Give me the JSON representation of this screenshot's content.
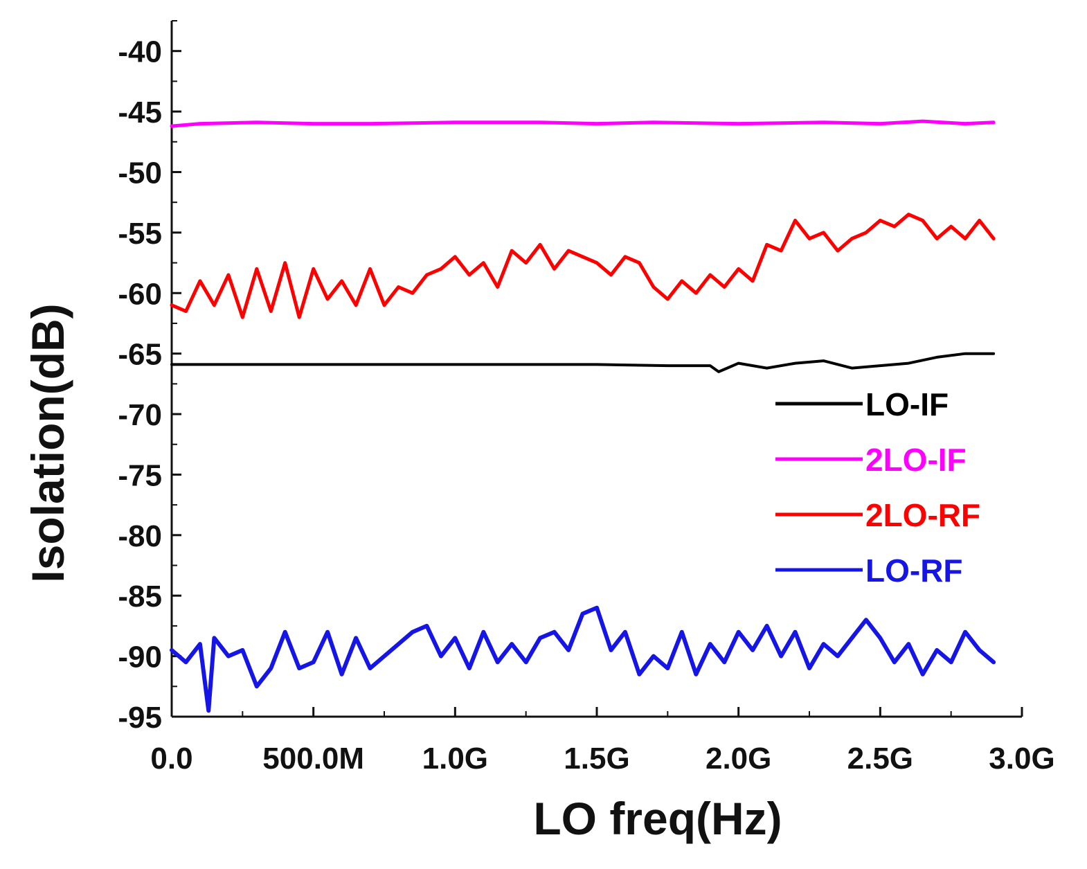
{
  "chart_data": {
    "type": "line",
    "title": "",
    "xlabel": "LO freq(Hz)",
    "ylabel": "Isolation(dB)",
    "xlim": [
      0,
      3000000000
    ],
    "ylim": [
      -95,
      -37.5
    ],
    "x_ticks": [
      {
        "value": 0,
        "label": "0.0"
      },
      {
        "value": 500000000,
        "label": "500.0M"
      },
      {
        "value": 1000000000,
        "label": "1.0G"
      },
      {
        "value": 1500000000,
        "label": "1.5G"
      },
      {
        "value": 2000000000,
        "label": "2.0G"
      },
      {
        "value": 2500000000,
        "label": "2.5G"
      },
      {
        "value": 3000000000,
        "label": "3.0G"
      }
    ],
    "y_ticks": [
      {
        "value": -40,
        "label": "-40"
      },
      {
        "value": -45,
        "label": "-45"
      },
      {
        "value": -50,
        "label": "-50"
      },
      {
        "value": -55,
        "label": "-55"
      },
      {
        "value": -60,
        "label": "-60"
      },
      {
        "value": -65,
        "label": "-65"
      },
      {
        "value": -70,
        "label": "-70"
      },
      {
        "value": -75,
        "label": "-75"
      },
      {
        "value": -80,
        "label": "-80"
      },
      {
        "value": -85,
        "label": "-85"
      },
      {
        "value": -90,
        "label": "-90"
      },
      {
        "value": -95,
        "label": "-95"
      }
    ],
    "legend_position": "middle-right",
    "x_unit": "GHz",
    "series": [
      {
        "name": "LO-IF",
        "color": "#000000",
        "x": [
          0.0,
          0.5,
          1.0,
          1.5,
          1.75,
          1.9,
          1.93,
          1.97,
          2.0,
          2.1,
          2.2,
          2.3,
          2.4,
          2.5,
          2.6,
          2.7,
          2.8,
          2.9
        ],
        "y": [
          -65.9,
          -65.9,
          -65.9,
          -65.9,
          -66.0,
          -66.0,
          -66.5,
          -66.1,
          -65.8,
          -66.2,
          -65.8,
          -65.6,
          -66.2,
          -66.0,
          -65.8,
          -65.3,
          -65.0,
          -65.0
        ]
      },
      {
        "name": "2LO-IF",
        "color": "#ff00ff",
        "x": [
          0.0,
          0.1,
          0.3,
          0.5,
          0.7,
          1.0,
          1.3,
          1.5,
          1.7,
          2.0,
          2.3,
          2.5,
          2.65,
          2.8,
          2.9
        ],
        "y": [
          -46.2,
          -46.0,
          -45.9,
          -46.0,
          -46.0,
          -45.9,
          -45.9,
          -46.0,
          -45.9,
          -46.0,
          -45.9,
          -46.0,
          -45.8,
          -46.0,
          -45.9
        ]
      },
      {
        "name": "2LO-RF",
        "color": "#ff0000",
        "x": [
          0.0,
          0.05,
          0.1,
          0.15,
          0.2,
          0.25,
          0.3,
          0.35,
          0.4,
          0.45,
          0.5,
          0.55,
          0.6,
          0.65,
          0.7,
          0.75,
          0.8,
          0.85,
          0.9,
          0.95,
          1.0,
          1.05,
          1.1,
          1.15,
          1.2,
          1.25,
          1.3,
          1.35,
          1.4,
          1.45,
          1.5,
          1.55,
          1.6,
          1.65,
          1.7,
          1.75,
          1.8,
          1.85,
          1.9,
          1.95,
          2.0,
          2.05,
          2.1,
          2.15,
          2.2,
          2.25,
          2.3,
          2.35,
          2.4,
          2.45,
          2.5,
          2.55,
          2.6,
          2.65,
          2.7,
          2.75,
          2.8,
          2.85,
          2.9
        ],
        "y": [
          -61.0,
          -61.5,
          -59.0,
          -61.0,
          -58.5,
          -62.0,
          -58.0,
          -61.5,
          -57.5,
          -62.0,
          -58.0,
          -60.5,
          -59.0,
          -61.0,
          -58.0,
          -61.0,
          -59.5,
          -60.0,
          -58.5,
          -58.0,
          -57.0,
          -58.5,
          -57.5,
          -59.5,
          -56.5,
          -57.5,
          -56.0,
          -58.0,
          -56.5,
          -57.0,
          -57.5,
          -58.5,
          -57.0,
          -57.5,
          -59.5,
          -60.5,
          -59.0,
          -60.0,
          -58.5,
          -59.5,
          -58.0,
          -59.0,
          -56.0,
          -56.5,
          -54.0,
          -55.5,
          -55.0,
          -56.5,
          -55.5,
          -55.0,
          -54.0,
          -54.5,
          -53.5,
          -54.0,
          -55.5,
          -54.5,
          -55.5,
          -54.0,
          -55.5
        ]
      },
      {
        "name": "LO-RF",
        "color": "#1515e8",
        "x": [
          0.0,
          0.05,
          0.1,
          0.13,
          0.15,
          0.2,
          0.25,
          0.3,
          0.35,
          0.4,
          0.45,
          0.5,
          0.55,
          0.6,
          0.65,
          0.7,
          0.75,
          0.8,
          0.85,
          0.9,
          0.95,
          1.0,
          1.05,
          1.1,
          1.15,
          1.2,
          1.25,
          1.3,
          1.35,
          1.4,
          1.45,
          1.5,
          1.55,
          1.6,
          1.65,
          1.7,
          1.75,
          1.8,
          1.85,
          1.9,
          1.95,
          2.0,
          2.05,
          2.1,
          2.15,
          2.2,
          2.25,
          2.3,
          2.35,
          2.4,
          2.45,
          2.5,
          2.55,
          2.6,
          2.65,
          2.7,
          2.75,
          2.8,
          2.85,
          2.9
        ],
        "y": [
          -89.5,
          -90.5,
          -89.0,
          -94.5,
          -88.5,
          -90.0,
          -89.5,
          -92.5,
          -91.0,
          -88.0,
          -91.0,
          -90.5,
          -88.0,
          -91.5,
          -88.5,
          -91.0,
          -90.0,
          -89.0,
          -88.0,
          -87.5,
          -90.0,
          -88.5,
          -91.0,
          -88.0,
          -90.5,
          -89.0,
          -90.5,
          -88.5,
          -88.0,
          -89.5,
          -86.5,
          -86.0,
          -89.5,
          -88.0,
          -91.5,
          -90.0,
          -91.0,
          -88.0,
          -91.5,
          -89.0,
          -90.5,
          -88.0,
          -89.5,
          -87.5,
          -90.0,
          -88.0,
          -91.0,
          -89.0,
          -90.0,
          -88.5,
          -87.0,
          -88.5,
          -90.5,
          -89.0,
          -91.5,
          -89.5,
          -90.5,
          -88.0,
          -89.5,
          -90.5
        ]
      }
    ]
  }
}
